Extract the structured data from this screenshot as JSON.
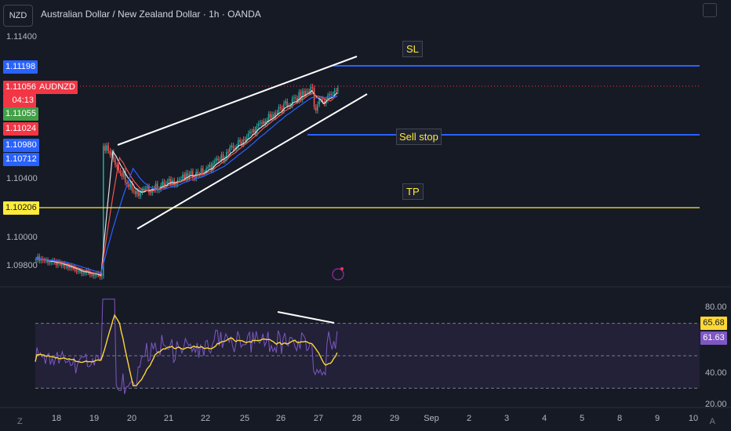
{
  "header": {
    "symbol_box": "NZD",
    "title": "Australian Dollar / New Zealand Dollar · 1h · OANDA"
  },
  "price_axis": {
    "labels": [
      "1.11400",
      "1.10400",
      "1.10000",
      "1.09800"
    ]
  },
  "price_tags": {
    "sl": "1.11198",
    "last": "1.11056",
    "symbol": "AUDNZD",
    "countdown": "04:13",
    "t3": "1.11055",
    "t4": "1.11024",
    "t5": "1.10980",
    "t6": "1.10712",
    "tp": "1.10206"
  },
  "annotations": {
    "sl": "SL",
    "sell_stop": "Sell stop",
    "tp": "TP"
  },
  "rsi": {
    "axis_labels": [
      "80.00",
      "40.00",
      "20.00"
    ],
    "ma_tag": "65.68",
    "rsi_tag": "61.63"
  },
  "x_axis": {
    "labels": [
      "18",
      "19",
      "20",
      "21",
      "22",
      "25",
      "26",
      "27",
      "28",
      "29",
      "Sep",
      "2",
      "3",
      "4",
      "5",
      "8",
      "9",
      "10"
    ]
  },
  "corner": {
    "left": "Z",
    "right": "A"
  },
  "colors": {
    "background": "#161a25",
    "up": "#26a69a",
    "down": "#ef5350",
    "sl_line": "#2962ff",
    "tp_line": "#ffeb3b",
    "rsi_line": "#7e57c2",
    "rsi_ma": "#fdd835"
  },
  "chart_data": {
    "type": "line",
    "price_scale": {
      "min": 1.0972,
      "max": 1.1145
    },
    "levels": {
      "sl": 1.11198,
      "sell_stop": 1.1073,
      "tp": 1.10206,
      "last": 1.11056
    },
    "channel": {
      "upper": [
        [
          1.1082,
          1.11357
        ],
        [
          1.11357,
          1.114
        ]
      ],
      "lower": [
        1.1018,
        1.111
      ]
    },
    "rsi_scale": {
      "min": 20,
      "max": 80
    },
    "rsi_levels": [
      70,
      50,
      30
    ]
  }
}
